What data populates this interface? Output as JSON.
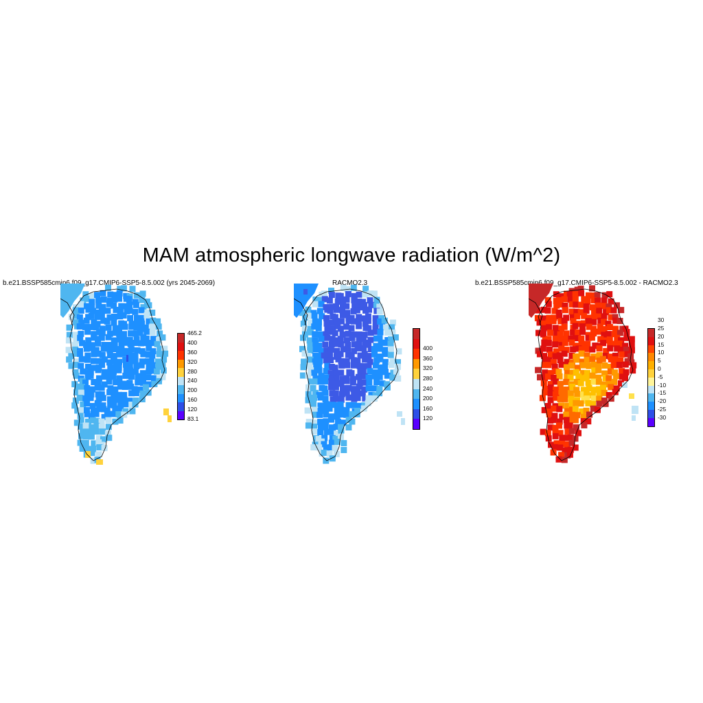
{
  "figure": {
    "title": "MAM atmospheric longwave radiation (W/m^2)"
  },
  "panels": [
    {
      "title": "b.e21.BSSP585cmip6.f09_g17.CMIP6-SSP5-8.5.002 (yrs 2045-2069)",
      "colorbar": {
        "colors": [
          "#5a00ff",
          "#2e4fe8",
          "#1e90ff",
          "#4fb6f0",
          "#bfe3f5",
          "#ffd23c",
          "#ff9900",
          "#ff3300",
          "#e01010",
          "#c62828"
        ],
        "labels": [
          "83.1",
          "120",
          "160",
          "200",
          "240",
          "280",
          "320",
          "360",
          "400",
          "465.2"
        ]
      },
      "palette": [
        "#1e90ff",
        "#4fb6f0",
        "#bfe3f5",
        "#ffd23c",
        "#2e4fe8"
      ]
    },
    {
      "title": "RACMO2.3",
      "colorbar": {
        "colors": [
          "#5a00ff",
          "#2e4fe8",
          "#1e90ff",
          "#4fb6f0",
          "#bfe3f5",
          "#ffd23c",
          "#ff9900",
          "#ff3300",
          "#e01010",
          "#c62828"
        ],
        "labels": [
          "120",
          "160",
          "200",
          "240",
          "280",
          "320",
          "360",
          "400"
        ]
      },
      "palette": [
        "#3d5ae6",
        "#1e90ff",
        "#4fb6f0",
        "#bfe3f5"
      ]
    },
    {
      "title": "b.e21.BSSP585cmip6.f09_g17.CMIP6-SSP5-8.5.002 - RACMO2.3",
      "colorbar": {
        "colors": [
          "#5a00ff",
          "#2e4fe8",
          "#1e90ff",
          "#4fb6f0",
          "#bfe3f5",
          "#fff59a",
          "#ffd23c",
          "#ffb000",
          "#ff8800",
          "#ff4400",
          "#e01010",
          "#c62828"
        ],
        "labels": [
          "-30",
          "-25",
          "-20",
          "-15",
          "-10",
          "-5",
          "0",
          "5",
          "10",
          "15",
          "20",
          "25",
          "30"
        ]
      },
      "palette": [
        "#c62828",
        "#e01010",
        "#ff3300",
        "#ff6a00",
        "#ff9900",
        "#ffc000",
        "#ffe14d",
        "#bfe3f5"
      ]
    }
  ]
}
